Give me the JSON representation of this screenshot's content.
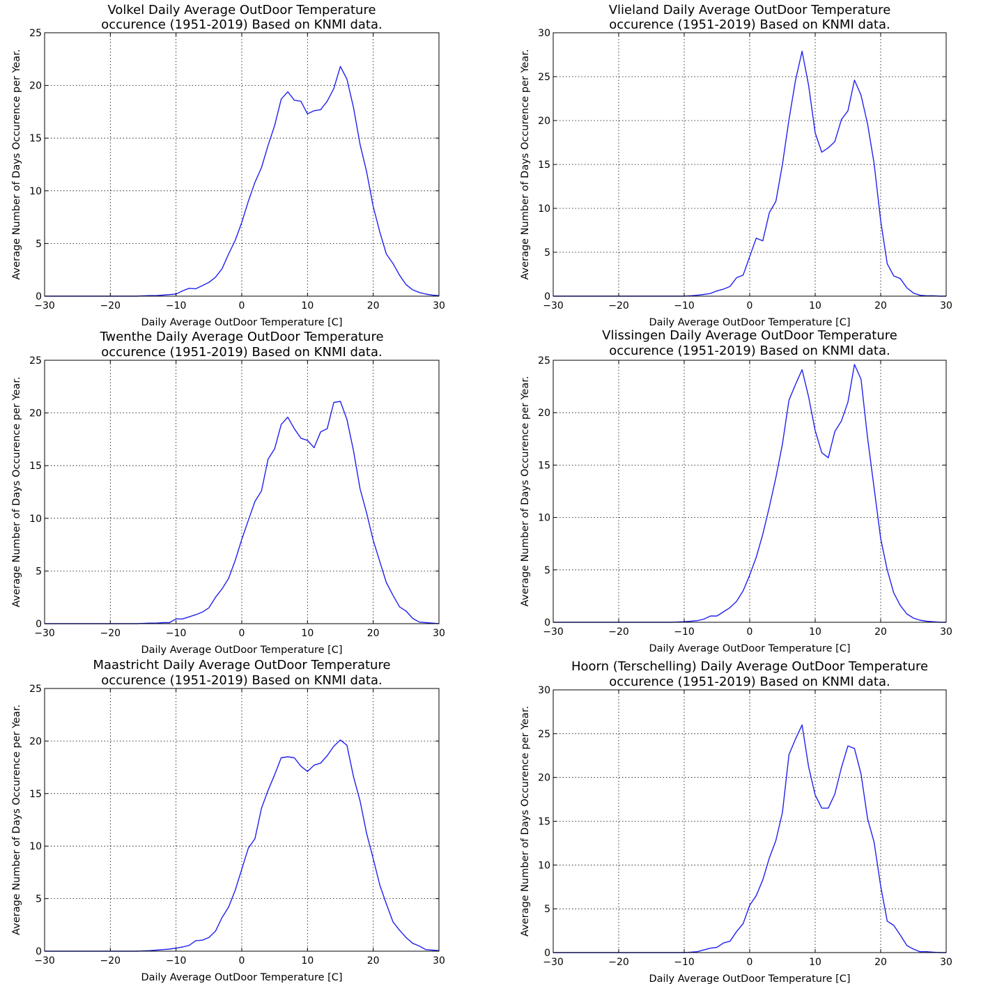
{
  "colors": {
    "line": "#2020ee",
    "axes": "#000000",
    "background": "#ffffff"
  },
  "chart_data": [
    {
      "type": "line",
      "title": [
        "Volkel Daily Average OutDoor Temperature",
        "occurence (1951-2019) Based on KNMI data."
      ],
      "xlabel": "Daily Average OutDoor Temperature [C]",
      "ylabel": "Average Number of Days Occurence per Year.",
      "xlim": [
        -30,
        30
      ],
      "ylim": [
        0,
        25
      ],
      "xticks": [
        -30,
        -20,
        -10,
        0,
        10,
        20,
        30
      ],
      "xtick_labels": [
        "−30",
        "−20",
        "−10",
        "0",
        "10",
        "20",
        "30"
      ],
      "yticks": [
        0,
        5,
        10,
        15,
        20,
        25
      ],
      "ytick_labels": [
        "0",
        "5",
        "10",
        "15",
        "20",
        "25"
      ],
      "grid": true,
      "series": [
        {
          "x": [
            -30,
            -25,
            -20,
            -16,
            -14,
            -13,
            -12,
            -11,
            -10,
            -9,
            -8,
            -7,
            -6,
            -5,
            -4,
            -3,
            -2,
            -1,
            0,
            1,
            2,
            3,
            4,
            5,
            6,
            7,
            8,
            9,
            10,
            11,
            12,
            13,
            14,
            15,
            16,
            17,
            18,
            19,
            20,
            21,
            22,
            23,
            24,
            25,
            26,
            27,
            28,
            29,
            30
          ],
          "y": [
            0,
            0,
            0,
            0,
            0.05,
            0.05,
            0.1,
            0.15,
            0.2,
            0.5,
            0.75,
            0.7,
            1.0,
            1.3,
            1.8,
            2.6,
            4.0,
            5.3,
            7.0,
            9.0,
            10.8,
            12.2,
            14.3,
            16.2,
            18.7,
            19.4,
            18.6,
            18.5,
            17.3,
            17.6,
            17.7,
            18.5,
            19.7,
            21.8,
            20.6,
            17.9,
            14.4,
            11.8,
            8.5,
            6.1,
            4.0,
            3.1,
            2.0,
            1.1,
            0.6,
            0.35,
            0.2,
            0.1,
            0.05
          ]
        }
      ]
    },
    {
      "type": "line",
      "title": [
        "Vlieland Daily Average OutDoor Temperature",
        "occurence (1951-2019) Based on KNMI data."
      ],
      "xlabel": "Daily Average OutDoor Temperature [C]",
      "ylabel": "Average Number of Days Occurence per Year.",
      "xlim": [
        -30,
        30
      ],
      "ylim": [
        0,
        30
      ],
      "xticks": [
        -30,
        -20,
        -10,
        0,
        10,
        20,
        30
      ],
      "xtick_labels": [
        "−30",
        "−20",
        "−10",
        "0",
        "10",
        "20",
        "30"
      ],
      "yticks": [
        0,
        5,
        10,
        15,
        20,
        25,
        30
      ],
      "ytick_labels": [
        "0",
        "5",
        "10",
        "15",
        "20",
        "25",
        "30"
      ],
      "grid": true,
      "series": [
        {
          "x": [
            -30,
            -20,
            -12,
            -10,
            -9,
            -8,
            -7,
            -6,
            -5,
            -4,
            -3,
            -2,
            -1,
            0,
            1,
            2,
            3,
            4,
            5,
            6,
            7,
            8,
            9,
            10,
            11,
            12,
            13,
            14,
            15,
            16,
            17,
            18,
            19,
            20,
            21,
            22,
            23,
            24,
            25,
            26,
            27,
            28,
            29,
            30
          ],
          "y": [
            0,
            0,
            0,
            0,
            0.05,
            0.1,
            0.2,
            0.3,
            0.6,
            0.8,
            1.1,
            2.1,
            2.4,
            4.5,
            6.6,
            6.3,
            9.5,
            10.8,
            15.0,
            20.1,
            24.6,
            27.9,
            24.0,
            18.6,
            16.4,
            16.9,
            17.6,
            20.1,
            21.1,
            24.6,
            22.9,
            19.6,
            15.1,
            8.6,
            3.7,
            2.3,
            2.0,
            0.95,
            0.35,
            0.1,
            0.05,
            0.05,
            0,
            0
          ]
        }
      ]
    },
    {
      "type": "line",
      "title": [
        "Twenthe Daily Average OutDoor Temperature",
        "occurence (1951-2019) Based on KNMI data."
      ],
      "xlabel": "Daily Average OutDoor Temperature [C]",
      "ylabel": "Average Number of Days Occurence per Year.",
      "xlim": [
        -30,
        30
      ],
      "ylim": [
        0,
        25
      ],
      "xticks": [
        -30,
        -20,
        -10,
        0,
        10,
        20,
        30
      ],
      "xtick_labels": [
        "−30",
        "−20",
        "−10",
        "0",
        "10",
        "20",
        "30"
      ],
      "yticks": [
        0,
        5,
        10,
        15,
        20,
        25
      ],
      "ytick_labels": [
        "0",
        "5",
        "10",
        "15",
        "20",
        "25"
      ],
      "grid": true,
      "series": [
        {
          "x": [
            -30,
            -25,
            -20,
            -16,
            -14,
            -13,
            -12,
            -11,
            -10,
            -9,
            -8,
            -7,
            -6,
            -5,
            -4,
            -3,
            -2,
            -1,
            0,
            1,
            2,
            3,
            4,
            5,
            6,
            7,
            8,
            9,
            10,
            11,
            12,
            13,
            14,
            15,
            16,
            17,
            18,
            19,
            20,
            21,
            22,
            23,
            24,
            25,
            26,
            27,
            28,
            29,
            30
          ],
          "y": [
            0,
            0,
            0,
            0,
            0.05,
            0.05,
            0.1,
            0.1,
            0.45,
            0.45,
            0.65,
            0.85,
            1.1,
            1.5,
            2.5,
            3.3,
            4.3,
            6.0,
            8.0,
            9.8,
            11.6,
            12.6,
            15.6,
            16.6,
            18.9,
            19.6,
            18.5,
            17.6,
            17.4,
            16.7,
            18.2,
            18.5,
            21.0,
            21.1,
            19.4,
            16.4,
            12.8,
            10.5,
            7.9,
            5.9,
            3.9,
            2.7,
            1.6,
            1.2,
            0.5,
            0.15,
            0.1,
            0.05,
            0
          ]
        }
      ]
    },
    {
      "type": "line",
      "title": [
        "Vlissingen Daily Average OutDoor Temperature",
        "occurence (1951-2019) Based on KNMI data."
      ],
      "xlabel": "Daily Average OutDoor Temperature [C]",
      "ylabel": "Average Number of Days Occurence per Year.",
      "xlim": [
        -30,
        30
      ],
      "ylim": [
        0,
        25
      ],
      "xticks": [
        -30,
        -20,
        -10,
        0,
        10,
        20,
        30
      ],
      "xtick_labels": [
        "−30",
        "−20",
        "−10",
        "0",
        "10",
        "20",
        "30"
      ],
      "yticks": [
        0,
        5,
        10,
        15,
        20,
        25
      ],
      "ytick_labels": [
        "0",
        "5",
        "10",
        "15",
        "20",
        "25"
      ],
      "grid": true,
      "series": [
        {
          "x": [
            -30,
            -20,
            -12,
            -10,
            -9,
            -8,
            -7,
            -6,
            -5,
            -4,
            -3,
            -2,
            -1,
            0,
            1,
            2,
            3,
            4,
            5,
            6,
            7,
            8,
            9,
            10,
            11,
            12,
            13,
            14,
            15,
            16,
            17,
            18,
            19,
            20,
            21,
            22,
            23,
            24,
            25,
            26,
            27,
            28,
            29,
            30
          ],
          "y": [
            0,
            0,
            0,
            0.05,
            0.1,
            0.15,
            0.3,
            0.6,
            0.6,
            1.0,
            1.4,
            2.0,
            3.0,
            4.5,
            6.2,
            8.4,
            11.0,
            13.8,
            17.0,
            21.2,
            22.7,
            24.1,
            21.5,
            18.3,
            16.2,
            15.7,
            18.2,
            19.2,
            21.0,
            24.6,
            23.2,
            17.6,
            12.8,
            8.0,
            5.0,
            2.8,
            1.6,
            0.8,
            0.4,
            0.2,
            0.1,
            0.05,
            0,
            0
          ]
        }
      ]
    },
    {
      "type": "line",
      "title": [
        "Maastricht Daily Average OutDoor Temperature",
        "occurence (1951-2019) Based on KNMI data."
      ],
      "xlabel": "Daily Average OutDoor Temperature [C]",
      "ylabel": "Average Number of Days Occurence per Year.",
      "xlim": [
        -30,
        30
      ],
      "ylim": [
        0,
        25
      ],
      "xticks": [
        -30,
        -20,
        -10,
        0,
        10,
        20,
        30
      ],
      "xtick_labels": [
        "−30",
        "−20",
        "−10",
        "0",
        "10",
        "20",
        "30"
      ],
      "yticks": [
        0,
        5,
        10,
        15,
        20,
        25
      ],
      "ytick_labels": [
        "0",
        "5",
        "10",
        "15",
        "20",
        "25"
      ],
      "grid": true,
      "series": [
        {
          "x": [
            -30,
            -25,
            -20,
            -16,
            -14,
            -13,
            -12,
            -11,
            -10,
            -9,
            -8,
            -7,
            -6,
            -5,
            -4,
            -3,
            -2,
            -1,
            0,
            1,
            2,
            3,
            4,
            5,
            6,
            7,
            8,
            9,
            10,
            11,
            12,
            13,
            14,
            15,
            16,
            17,
            18,
            19,
            20,
            21,
            22,
            23,
            24,
            25,
            26,
            27,
            28,
            29,
            30
          ],
          "y": [
            0,
            0,
            0,
            0,
            0.05,
            0.1,
            0.15,
            0.2,
            0.3,
            0.4,
            0.55,
            1.0,
            1.05,
            1.3,
            1.9,
            3.2,
            4.2,
            5.8,
            7.8,
            9.8,
            10.7,
            13.6,
            15.3,
            16.8,
            18.4,
            18.5,
            18.4,
            17.6,
            17.1,
            17.7,
            17.9,
            18.6,
            19.5,
            20.1,
            19.6,
            16.6,
            14.3,
            11.2,
            8.8,
            6.3,
            4.5,
            2.8,
            2.0,
            1.3,
            0.75,
            0.5,
            0.15,
            0.1,
            0.05
          ]
        }
      ]
    },
    {
      "type": "line",
      "title": [
        "Hoorn (Terschelling) Daily Average OutDoor Temperature",
        "occurence (1951-2019) Based on KNMI data."
      ],
      "xlabel": "Daily Average OutDoor Temperature [C]",
      "ylabel": "Average Number of Days Occurence per Year.",
      "xlim": [
        -30,
        30
      ],
      "ylim": [
        0,
        30
      ],
      "xticks": [
        -30,
        -20,
        -10,
        0,
        10,
        20,
        30
      ],
      "xtick_labels": [
        "−30",
        "−20",
        "−10",
        "0",
        "10",
        "20",
        "30"
      ],
      "yticks": [
        0,
        5,
        10,
        15,
        20,
        25,
        30
      ],
      "ytick_labels": [
        "0",
        "5",
        "10",
        "15",
        "20",
        "25",
        "30"
      ],
      "grid": true,
      "series": [
        {
          "x": [
            -30,
            -20,
            -12,
            -10,
            -9,
            -8,
            -7,
            -6,
            -5,
            -4,
            -3,
            -2,
            -1,
            0,
            1,
            2,
            3,
            4,
            5,
            6,
            7,
            8,
            9,
            10,
            11,
            12,
            13,
            14,
            15,
            16,
            17,
            18,
            19,
            20,
            21,
            22,
            23,
            24,
            25,
            26,
            27,
            28,
            29,
            30
          ],
          "y": [
            0,
            0,
            0,
            0,
            0.05,
            0.1,
            0.3,
            0.5,
            0.6,
            1.1,
            1.3,
            2.4,
            3.3,
            5.4,
            6.5,
            8.3,
            10.8,
            12.8,
            16.0,
            22.6,
            24.4,
            26.0,
            21.2,
            18.0,
            16.5,
            16.5,
            18.1,
            21.1,
            23.6,
            23.3,
            20.4,
            15.3,
            12.6,
            7.6,
            3.6,
            3.1,
            2.0,
            0.8,
            0.4,
            0.1,
            0.1,
            0.05,
            0,
            0
          ]
        }
      ]
    }
  ]
}
